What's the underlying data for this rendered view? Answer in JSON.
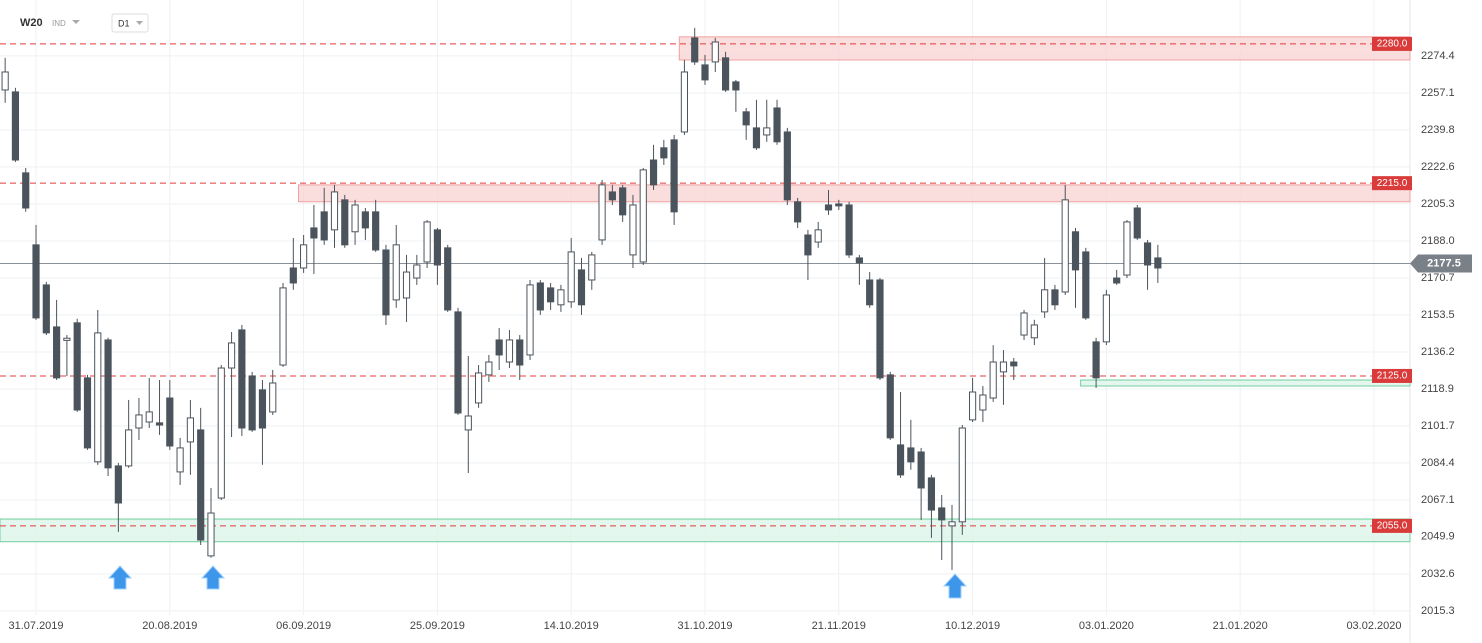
{
  "header": {
    "symbol": "W20",
    "market": "IND",
    "interval": "D1"
  },
  "chart_data": {
    "type": "candlestick",
    "categories": [
      null,
      null,
      null,
      "31.07.2019",
      null,
      null,
      null,
      null,
      null,
      null,
      null,
      null,
      null,
      null,
      null,
      null,
      "20.08.2019",
      null,
      null,
      null,
      null,
      null,
      null,
      null,
      null,
      null,
      null,
      null,
      null,
      "06.09.2019",
      null,
      null,
      null,
      null,
      null,
      null,
      null,
      null,
      null,
      null,
      null,
      null,
      "25.09.2019",
      null,
      null,
      null,
      null,
      null,
      null,
      null,
      null,
      null,
      null,
      null,
      null,
      "14.10.2019",
      null,
      null,
      null,
      null,
      null,
      null,
      null,
      null,
      null,
      null,
      null,
      null,
      "31.10.2019",
      null,
      null,
      null,
      null,
      null,
      null,
      null,
      null,
      null,
      null,
      null,
      null,
      "21.11.2019",
      null,
      null,
      null,
      null,
      null,
      null,
      null,
      null,
      null,
      null,
      null,
      null,
      "10.12.2019",
      null,
      null,
      null,
      null,
      null,
      null,
      null,
      null,
      null,
      null,
      null,
      null,
      "03.01.2020",
      null,
      null,
      null,
      null,
      null,
      null,
      null,
      null,
      null,
      null,
      null,
      null,
      "21.01.2020",
      null,
      null,
      null,
      null,
      null,
      null,
      null,
      null,
      null,
      null,
      null,
      null,
      "03.02.2020",
      null,
      null,
      null
    ],
    "series": {
      "open": [
        2258.5,
        2257.6,
        2219.8,
        2186.2,
        2167.5,
        2147.9,
        2141.6,
        2149.8,
        2124.1,
        2084.9,
        2141.8,
        2083.0,
        2083.0,
        2100.7,
        2103.5,
        2103.1,
        2114.7,
        2080.2,
        2094.2,
        2099.8,
        2041.0,
        2068.0,
        2128.7,
        2146.5,
        2125.0,
        2118.5,
        2108.2,
        2130.1,
        2175.4,
        2175.4,
        2194.1,
        2201.6,
        2193.2,
        2207.2,
        2192.3,
        2201.6,
        2201.6,
        2183.8,
        2160.5,
        2161.4,
        2170.7,
        2178.2,
        2193.2,
        2184.8,
        2154.9,
        2099.8,
        2112.4,
        2125.5,
        2141.8,
        2131.5,
        2141.8,
        2134.8,
        2168.4,
        2166.1,
        2158.2,
        2159.6,
        2174.5,
        2169.8,
        2188.5,
        2210.9,
        2212.8,
        2181.5,
        2178.2,
        2225.8,
        2231.5,
        2235.2,
        2238.9,
        2282.8,
        2270.2,
        2271.6,
        2273.5,
        2262.3,
        2248.3,
        2240.8,
        2237.5,
        2250.1,
        2238.9,
        2206.3,
        2190.8,
        2187.5,
        2204.8,
        2205.3,
        2204.8,
        2180.1,
        2169.8,
        2169.8,
        2125.5,
        2092.8,
        2091.4,
        2089.5,
        2077.4,
        2063.4,
        2055.0,
        2056.9,
        2104.5,
        2109.1,
        2114.7,
        2126.9,
        2131.5,
        2144.1,
        2142.8,
        2154.9,
        2165.2,
        2164.2,
        2192.3,
        2182.9,
        2140.9,
        2140.9,
        2170.7,
        2172.1,
        2203.4,
        2187.1,
        2180.1,
        null,
        null,
        null,
        null,
        null,
        null,
        null,
        null,
        null,
        null,
        null,
        null,
        null,
        null,
        null,
        null,
        null,
        null,
        null,
        null,
        null,
        null,
        null,
        null
      ],
      "high": [
        2273.5,
        2259.5,
        2222.1,
        2195.5,
        2168.9,
        2160.5,
        2144.1,
        2151.7,
        2125.5,
        2155.8,
        2142.8,
        2084.4,
        2113.8,
        2114.7,
        2124.1,
        2123.1,
        2123.1,
        2096.1,
        2113.8,
        2110.1,
        2072.7,
        2130.1,
        2145.5,
        2148.8,
        2126.9,
        2123.1,
        2127.8,
        2168.4,
        2189.4,
        2190.8,
        2204.8,
        2212.8,
        2214.2,
        2209.5,
        2207.2,
        2203.4,
        2207.2,
        2186.2,
        2195.5,
        2181.5,
        2181.5,
        2197.8,
        2194.1,
        2186.2,
        2156.8,
        2134.3,
        2130.1,
        2134.8,
        2147.4,
        2146.5,
        2144.1,
        2169.8,
        2169.8,
        2168.4,
        2167.5,
        2189.4,
        2180.1,
        2182.9,
        2216.5,
        2214.2,
        2214.2,
        2209.5,
        2222.1,
        2232.9,
        2235.2,
        2237.5,
        2272.5,
        2287.5,
        2274.9,
        2282.8,
        2276.3,
        2263.2,
        2250.1,
        2253.9,
        2253.9,
        2253.9,
        2240.8,
        2208.1,
        2193.2,
        2196.9,
        2211.8,
        2207.2,
        2206.3,
        2181.5,
        2173.5,
        2170.7,
        2126.9,
        2117.5,
        2104.5,
        2091.4,
        2078.8,
        2069.4,
        2064.8,
        2102.1,
        2124.1,
        2120.3,
        2139.4,
        2137.1,
        2133.4,
        2155.8,
        2151.2,
        2180.1,
        2167.5,
        2214.2,
        2194.1,
        2184.8,
        2142.8,
        2165.2,
        2174.5,
        2197.8,
        2204.8,
        2188.5,
        2186.2,
        null,
        null,
        null,
        null,
        null,
        null,
        null,
        null,
        null,
        null,
        null,
        null,
        null,
        null,
        null,
        null,
        null,
        null,
        null,
        null,
        null,
        null,
        null,
        null
      ],
      "low": [
        2252.5,
        2224.9,
        2201.6,
        2151.2,
        2144.1,
        2123.1,
        2125.0,
        2108.2,
        2090.5,
        2083.5,
        2078.3,
        2052.2,
        2082.1,
        2095.1,
        2100.7,
        2097.5,
        2090.5,
        2074.1,
        2078.8,
        2046.1,
        2040.1,
        2067.1,
        2096.5,
        2097.0,
        2098.9,
        2083.5,
        2106.8,
        2129.2,
        2165.2,
        2173.1,
        2172.6,
        2186.2,
        2184.8,
        2184.8,
        2186.2,
        2188.5,
        2182.9,
        2148.8,
        2156.8,
        2150.2,
        2167.5,
        2175.4,
        2167.5,
        2154.9,
        2106.8,
        2079.7,
        2110.1,
        2122.2,
        2127.8,
        2128.7,
        2123.1,
        2132.4,
        2153.5,
        2155.8,
        2154.9,
        2156.8,
        2153.5,
        2165.2,
        2186.2,
        2204.8,
        2196.9,
        2175.4,
        2176.8,
        2211.8,
        2223.5,
        2195.5,
        2237.5,
        2270.2,
        2260.9,
        2266.9,
        2257.6,
        2248.3,
        2235.2,
        2230.5,
        2234.3,
        2232.9,
        2204.8,
        2194.1,
        2169.8,
        2184.8,
        2200.2,
        2202.5,
        2180.1,
        2167.5,
        2156.8,
        2123.1,
        2095.1,
        2077.4,
        2081.2,
        2057.8,
        2049.4,
        2039.1,
        2034.4,
        2050.8,
        2103.5,
        2103.5,
        2112.9,
        2111.5,
        2123.1,
        2141.8,
        2139.4,
        2152.1,
        2155.8,
        2162.8,
        2156.8,
        2151.2,
        2119.4,
        2139.4,
        2167.5,
        2170.7,
        2188.5,
        2165.2,
        2168.4,
        null,
        null,
        null,
        null,
        null,
        null,
        null,
        null,
        null,
        null,
        null,
        null,
        null,
        null,
        null,
        null,
        null,
        null,
        null,
        null,
        null,
        null,
        null,
        null
      ],
      "close": [
        2266.9,
        2225.8,
        2203.4,
        2152.1,
        2145.1,
        2124.1,
        2142.6,
        2109.1,
        2091.4,
        2145.1,
        2082.1,
        2065.7,
        2099.8,
        2106.8,
        2108.2,
        2102.1,
        2092.3,
        2091.4,
        2105.4,
        2048.4,
        2061.0,
        2128.7,
        2140.4,
        2100.7,
        2099.8,
        2100.7,
        2121.7,
        2166.1,
        2168.4,
        2186.2,
        2189.4,
        2188.5,
        2210.9,
        2186.2,
        2204.8,
        2194.1,
        2183.8,
        2153.5,
        2186.2,
        2173.5,
        2176.8,
        2196.9,
        2176.8,
        2155.8,
        2107.7,
        2106.3,
        2126.4,
        2131.5,
        2134.8,
        2141.8,
        2130.1,
        2167.5,
        2155.8,
        2159.6,
        2165.2,
        2182.9,
        2158.2,
        2181.5,
        2214.2,
        2207.2,
        2200.2,
        2204.8,
        2221.2,
        2214.2,
        2226.8,
        2201.6,
        2266.9,
        2271.6,
        2263.2,
        2280.9,
        2258.5,
        2258.5,
        2242.2,
        2231.5,
        2240.8,
        2234.3,
        2207.2,
        2196.9,
        2181.5,
        2193.2,
        2202.5,
        2204.4,
        2181.5,
        2177.8,
        2158.2,
        2124.1,
        2096.1,
        2078.8,
        2084.9,
        2072.7,
        2062.4,
        2057.8,
        2056.9,
        2100.7,
        2117.5,
        2116.1,
        2131.5,
        2131.5,
        2129.7,
        2154.4,
        2148.8,
        2165.2,
        2158.2,
        2207.2,
        2174.5,
        2152.1,
        2124.1,
        2162.8,
        2168.4,
        2196.9,
        2189.4,
        2176.8,
        2175.4,
        null,
        null,
        null,
        null,
        null,
        null,
        null,
        null,
        null,
        null,
        null,
        null,
        null,
        null,
        null,
        null,
        null,
        null,
        null,
        null,
        null,
        null,
        null,
        null
      ]
    },
    "up_color": "#ffffff",
    "down_color": "#4b545c",
    "ylim": [
      2013.4,
      2300.5
    ],
    "yticks": [
      2274.4,
      2257.1,
      2239.8,
      2222.6,
      2205.3,
      {
        "value": 2188,
        "label": "2188.0"
      },
      2170.7,
      2153.5,
      2136.2,
      2118.9,
      2101.7,
      2084.4,
      2067.1,
      2049.9,
      2032.6,
      2015.3
    ],
    "grid": true,
    "levels": [
      {
        "value": 2280,
        "label": "2280.0"
      },
      {
        "value": 2215,
        "label": "2215.0"
      },
      {
        "value": 2125,
        "label": "2125.0"
      },
      {
        "value": 2055,
        "label": "2055.0"
      }
    ],
    "level_color": "#e03c3c",
    "zones": [
      {
        "from": 2272.5,
        "to": 2283.3,
        "start": 66,
        "color": "#f9d4d4",
        "border": "#f0a0a0"
      },
      {
        "from": 2206.3,
        "to": 2214.2,
        "start": 29,
        "color": "#f9d4d4",
        "border": "#f0a0a0"
      },
      {
        "from": 2047.6,
        "to": 2058.2,
        "start": 0,
        "color": "#ddf5ea",
        "border": "#6fcf9f"
      },
      {
        "from": 2120.3,
        "to": 2123.1,
        "start": 105,
        "color": "#ddf5ea",
        "border": "#6fcf9f"
      }
    ],
    "last_price": 2177.5
  }
}
